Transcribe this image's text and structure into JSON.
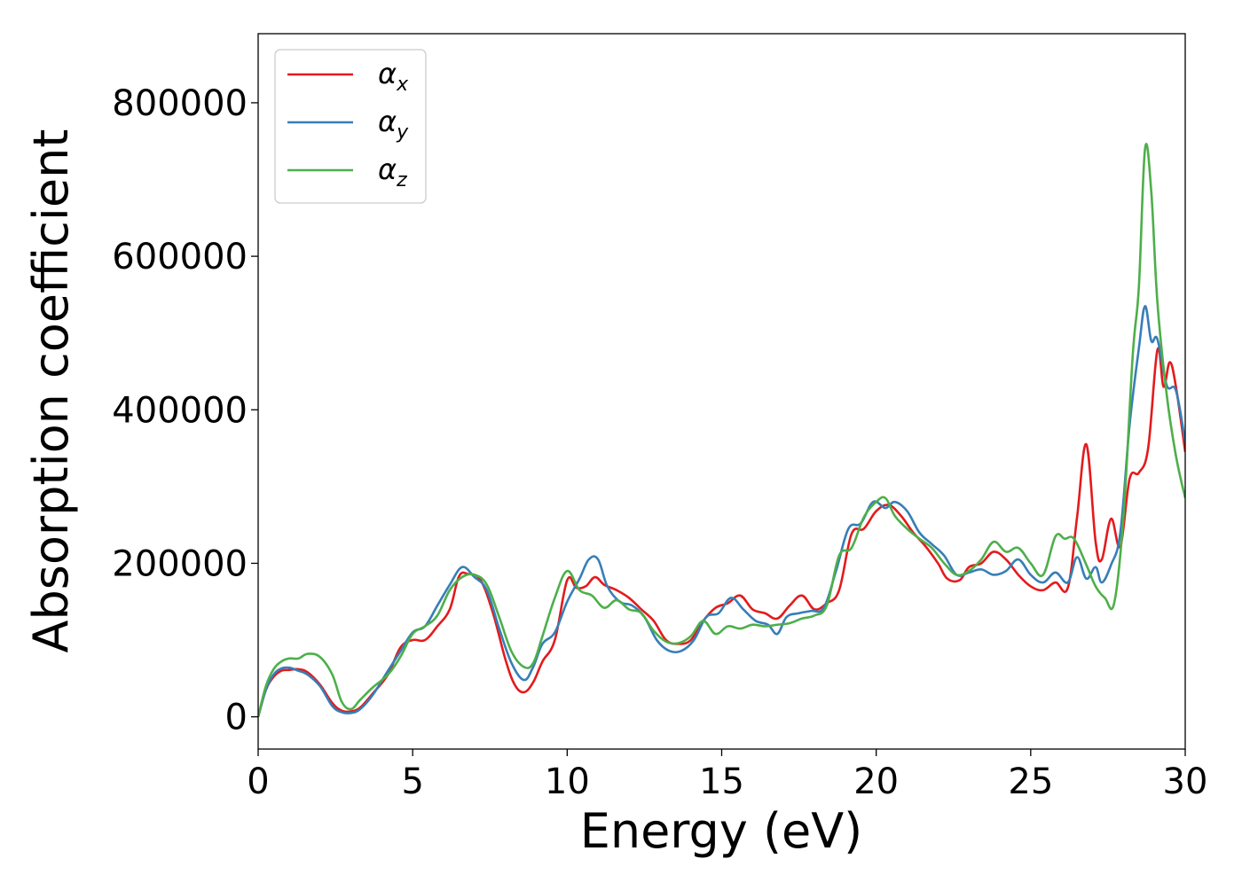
{
  "chart_data": {
    "type": "line",
    "xlabel": "Energy (eV)",
    "ylabel": "Absorption coefficient",
    "xlim": [
      0,
      30
    ],
    "ylim": [
      -42000,
      890000
    ],
    "xticks": [
      0,
      5,
      10,
      15,
      20,
      25,
      30
    ],
    "xtick_labels": [
      "0",
      "5",
      "10",
      "15",
      "20",
      "25",
      "30"
    ],
    "yticks": [
      0,
      200000,
      400000,
      600000,
      800000
    ],
    "ytick_labels": [
      "0",
      "200000",
      "400000",
      "600000",
      "800000"
    ],
    "grid": false,
    "legend_position": "top-left",
    "series": [
      {
        "name": "α_x",
        "label_main": "α",
        "label_sub": "x",
        "color": "#e41a1c",
        "points": [
          [
            0,
            0
          ],
          [
            0.25,
            35000
          ],
          [
            0.5,
            52000
          ],
          [
            0.75,
            60000
          ],
          [
            1.0,
            61000
          ],
          [
            1.3,
            62000
          ],
          [
            1.6,
            58000
          ],
          [
            2.0,
            42000
          ],
          [
            2.4,
            18000
          ],
          [
            2.7,
            8000
          ],
          [
            3.0,
            7000
          ],
          [
            3.3,
            12000
          ],
          [
            3.7,
            30000
          ],
          [
            4.2,
            55000
          ],
          [
            4.6,
            90000
          ],
          [
            5.0,
            100000
          ],
          [
            5.4,
            100000
          ],
          [
            5.8,
            118000
          ],
          [
            6.2,
            140000
          ],
          [
            6.5,
            183000
          ],
          [
            6.8,
            186000
          ],
          [
            7.2,
            178000
          ],
          [
            7.6,
            135000
          ],
          [
            8.0,
            75000
          ],
          [
            8.3,
            42000
          ],
          [
            8.6,
            32000
          ],
          [
            8.9,
            45000
          ],
          [
            9.2,
            72000
          ],
          [
            9.6,
            100000
          ],
          [
            10.0,
            178000
          ],
          [
            10.3,
            168000
          ],
          [
            10.6,
            170000
          ],
          [
            10.9,
            182000
          ],
          [
            11.2,
            172000
          ],
          [
            11.6,
            165000
          ],
          [
            12.0,
            155000
          ],
          [
            12.4,
            140000
          ],
          [
            12.8,
            125000
          ],
          [
            13.2,
            100000
          ],
          [
            13.6,
            95000
          ],
          [
            14.0,
            100000
          ],
          [
            14.4,
            125000
          ],
          [
            14.8,
            142000
          ],
          [
            15.2,
            148000
          ],
          [
            15.6,
            158000
          ],
          [
            16.0,
            140000
          ],
          [
            16.4,
            135000
          ],
          [
            16.8,
            128000
          ],
          [
            17.2,
            145000
          ],
          [
            17.6,
            158000
          ],
          [
            18.0,
            140000
          ],
          [
            18.4,
            148000
          ],
          [
            18.8,
            165000
          ],
          [
            19.2,
            238000
          ],
          [
            19.6,
            245000
          ],
          [
            20.0,
            268000
          ],
          [
            20.4,
            276000
          ],
          [
            20.8,
            262000
          ],
          [
            21.2,
            240000
          ],
          [
            21.6,
            222000
          ],
          [
            22.0,
            200000
          ],
          [
            22.3,
            180000
          ],
          [
            22.7,
            178000
          ],
          [
            23.0,
            195000
          ],
          [
            23.4,
            200000
          ],
          [
            23.8,
            215000
          ],
          [
            24.2,
            205000
          ],
          [
            24.6,
            185000
          ],
          [
            25.0,
            170000
          ],
          [
            25.4,
            165000
          ],
          [
            25.8,
            175000
          ],
          [
            26.2,
            168000
          ],
          [
            26.5,
            260000
          ],
          [
            26.8,
            355000
          ],
          [
            27.1,
            228000
          ],
          [
            27.3,
            205000
          ],
          [
            27.6,
            258000
          ],
          [
            27.9,
            222000
          ],
          [
            28.2,
            310000
          ],
          [
            28.5,
            318000
          ],
          [
            28.8,
            350000
          ],
          [
            29.1,
            478000
          ],
          [
            29.3,
            430000
          ],
          [
            29.5,
            462000
          ],
          [
            29.7,
            430000
          ],
          [
            30.0,
            345000
          ]
        ]
      },
      {
        "name": "α_y",
        "label_main": "α",
        "label_sub": "y",
        "color": "#377eb8",
        "points": [
          [
            0,
            0
          ],
          [
            0.25,
            35000
          ],
          [
            0.5,
            55000
          ],
          [
            0.75,
            63000
          ],
          [
            1.0,
            64000
          ],
          [
            1.3,
            60000
          ],
          [
            1.6,
            55000
          ],
          [
            2.0,
            40000
          ],
          [
            2.4,
            14000
          ],
          [
            2.7,
            6000
          ],
          [
            3.0,
            5000
          ],
          [
            3.3,
            10000
          ],
          [
            3.7,
            28000
          ],
          [
            4.2,
            60000
          ],
          [
            4.6,
            85000
          ],
          [
            5.0,
            110000
          ],
          [
            5.4,
            118000
          ],
          [
            5.8,
            145000
          ],
          [
            6.2,
            172000
          ],
          [
            6.6,
            195000
          ],
          [
            7.0,
            182000
          ],
          [
            7.4,
            165000
          ],
          [
            7.8,
            115000
          ],
          [
            8.2,
            70000
          ],
          [
            8.6,
            48000
          ],
          [
            8.9,
            65000
          ],
          [
            9.2,
            95000
          ],
          [
            9.6,
            110000
          ],
          [
            10.0,
            150000
          ],
          [
            10.4,
            180000
          ],
          [
            10.7,
            205000
          ],
          [
            11.0,
            205000
          ],
          [
            11.3,
            170000
          ],
          [
            11.7,
            150000
          ],
          [
            12.1,
            145000
          ],
          [
            12.5,
            130000
          ],
          [
            12.9,
            100000
          ],
          [
            13.3,
            86000
          ],
          [
            13.7,
            86000
          ],
          [
            14.1,
            100000
          ],
          [
            14.5,
            130000
          ],
          [
            14.9,
            135000
          ],
          [
            15.3,
            155000
          ],
          [
            15.7,
            140000
          ],
          [
            16.1,
            125000
          ],
          [
            16.5,
            120000
          ],
          [
            16.8,
            108000
          ],
          [
            17.1,
            130000
          ],
          [
            17.5,
            135000
          ],
          [
            17.9,
            138000
          ],
          [
            18.3,
            142000
          ],
          [
            18.7,
            190000
          ],
          [
            19.1,
            245000
          ],
          [
            19.5,
            252000
          ],
          [
            19.9,
            280000
          ],
          [
            20.3,
            272000
          ],
          [
            20.6,
            280000
          ],
          [
            21.0,
            268000
          ],
          [
            21.4,
            240000
          ],
          [
            21.8,
            225000
          ],
          [
            22.2,
            210000
          ],
          [
            22.6,
            185000
          ],
          [
            23.0,
            188000
          ],
          [
            23.4,
            192000
          ],
          [
            23.8,
            185000
          ],
          [
            24.2,
            190000
          ],
          [
            24.6,
            205000
          ],
          [
            25.0,
            185000
          ],
          [
            25.4,
            175000
          ],
          [
            25.8,
            188000
          ],
          [
            26.2,
            175000
          ],
          [
            26.5,
            208000
          ],
          [
            26.8,
            180000
          ],
          [
            27.1,
            195000
          ],
          [
            27.3,
            175000
          ],
          [
            27.6,
            198000
          ],
          [
            27.9,
            240000
          ],
          [
            28.2,
            380000
          ],
          [
            28.5,
            480000
          ],
          [
            28.7,
            535000
          ],
          [
            28.9,
            490000
          ],
          [
            29.1,
            492000
          ],
          [
            29.4,
            432000
          ],
          [
            29.7,
            425000
          ],
          [
            30.0,
            358000
          ]
        ]
      },
      {
        "name": "α_z",
        "label_main": "α",
        "label_sub": "z",
        "color": "#4daf4a",
        "points": [
          [
            0,
            0
          ],
          [
            0.25,
            40000
          ],
          [
            0.5,
            62000
          ],
          [
            0.75,
            72000
          ],
          [
            1.0,
            76000
          ],
          [
            1.3,
            76000
          ],
          [
            1.6,
            82000
          ],
          [
            2.0,
            78000
          ],
          [
            2.4,
            55000
          ],
          [
            2.7,
            20000
          ],
          [
            3.0,
            10000
          ],
          [
            3.3,
            22000
          ],
          [
            3.7,
            38000
          ],
          [
            4.2,
            55000
          ],
          [
            4.6,
            78000
          ],
          [
            5.0,
            108000
          ],
          [
            5.4,
            118000
          ],
          [
            5.8,
            132000
          ],
          [
            6.2,
            165000
          ],
          [
            6.6,
            182000
          ],
          [
            7.0,
            185000
          ],
          [
            7.4,
            172000
          ],
          [
            7.8,
            130000
          ],
          [
            8.2,
            85000
          ],
          [
            8.6,
            65000
          ],
          [
            8.9,
            70000
          ],
          [
            9.2,
            105000
          ],
          [
            9.6,
            155000
          ],
          [
            10.0,
            190000
          ],
          [
            10.4,
            165000
          ],
          [
            10.8,
            158000
          ],
          [
            11.2,
            142000
          ],
          [
            11.6,
            152000
          ],
          [
            12.0,
            140000
          ],
          [
            12.4,
            135000
          ],
          [
            12.8,
            112000
          ],
          [
            13.2,
            98000
          ],
          [
            13.6,
            96000
          ],
          [
            14.0,
            105000
          ],
          [
            14.4,
            125000
          ],
          [
            14.8,
            108000
          ],
          [
            15.2,
            118000
          ],
          [
            15.6,
            115000
          ],
          [
            16.0,
            120000
          ],
          [
            16.4,
            118000
          ],
          [
            16.8,
            120000
          ],
          [
            17.2,
            122000
          ],
          [
            17.6,
            128000
          ],
          [
            18.0,
            132000
          ],
          [
            18.4,
            145000
          ],
          [
            18.8,
            210000
          ],
          [
            19.2,
            220000
          ],
          [
            19.6,
            260000
          ],
          [
            20.0,
            280000
          ],
          [
            20.3,
            285000
          ],
          [
            20.6,
            262000
          ],
          [
            21.0,
            245000
          ],
          [
            21.4,
            232000
          ],
          [
            21.8,
            220000
          ],
          [
            22.2,
            200000
          ],
          [
            22.6,
            185000
          ],
          [
            23.0,
            190000
          ],
          [
            23.4,
            205000
          ],
          [
            23.8,
            228000
          ],
          [
            24.2,
            215000
          ],
          [
            24.6,
            220000
          ],
          [
            25.0,
            200000
          ],
          [
            25.4,
            185000
          ],
          [
            25.8,
            235000
          ],
          [
            26.1,
            232000
          ],
          [
            26.4,
            232000
          ],
          [
            26.8,
            198000
          ],
          [
            27.1,
            170000
          ],
          [
            27.4,
            155000
          ],
          [
            27.7,
            148000
          ],
          [
            28.0,
            260000
          ],
          [
            28.3,
            470000
          ],
          [
            28.5,
            560000
          ],
          [
            28.7,
            740000
          ],
          [
            28.9,
            685000
          ],
          [
            29.1,
            540000
          ],
          [
            29.4,
            420000
          ],
          [
            29.7,
            340000
          ],
          [
            30.0,
            285000
          ]
        ]
      }
    ]
  }
}
